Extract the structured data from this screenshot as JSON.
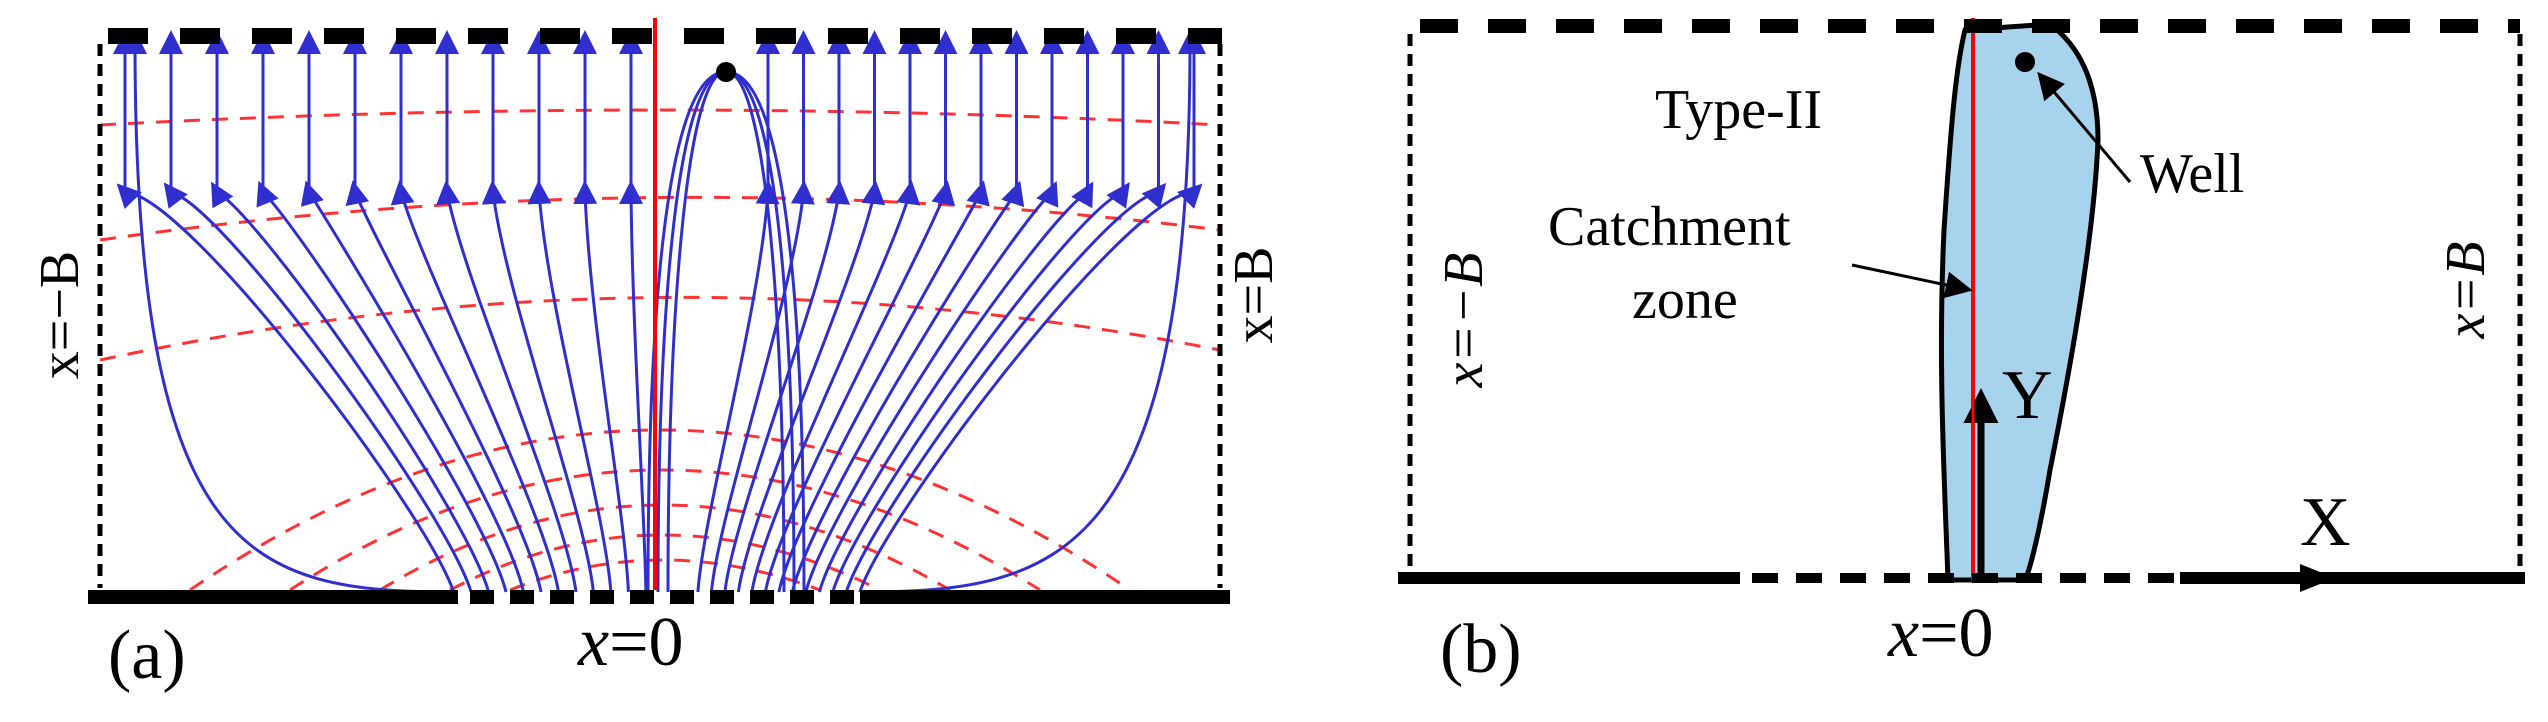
{
  "panel_a": {
    "label": "(a)",
    "left_boundary_label": "x=−B",
    "right_boundary_label": "x=B",
    "bottom_label_var": "x",
    "bottom_label_rest": "=0",
    "colors": {
      "streamline": "#2f2fd0",
      "equipotential": "#ff3333",
      "divide": "#ff0000",
      "boundary": "#000000"
    }
  },
  "panel_b": {
    "label": "(b)",
    "type_label": "Type-II",
    "catchment_label_line1": "Catchment",
    "catchment_label_line2": "zone",
    "well_label": "Well",
    "y_axis_label": "Y",
    "x_axis_label": "X",
    "left_boundary_label": "x=−B",
    "right_boundary_label": "x=B",
    "bottom_label_var": "x",
    "bottom_label_rest": "=0",
    "colors": {
      "zone_fill": "#a7d3ec",
      "zone_stroke": "#000000",
      "divide": "#ff0000"
    }
  }
}
